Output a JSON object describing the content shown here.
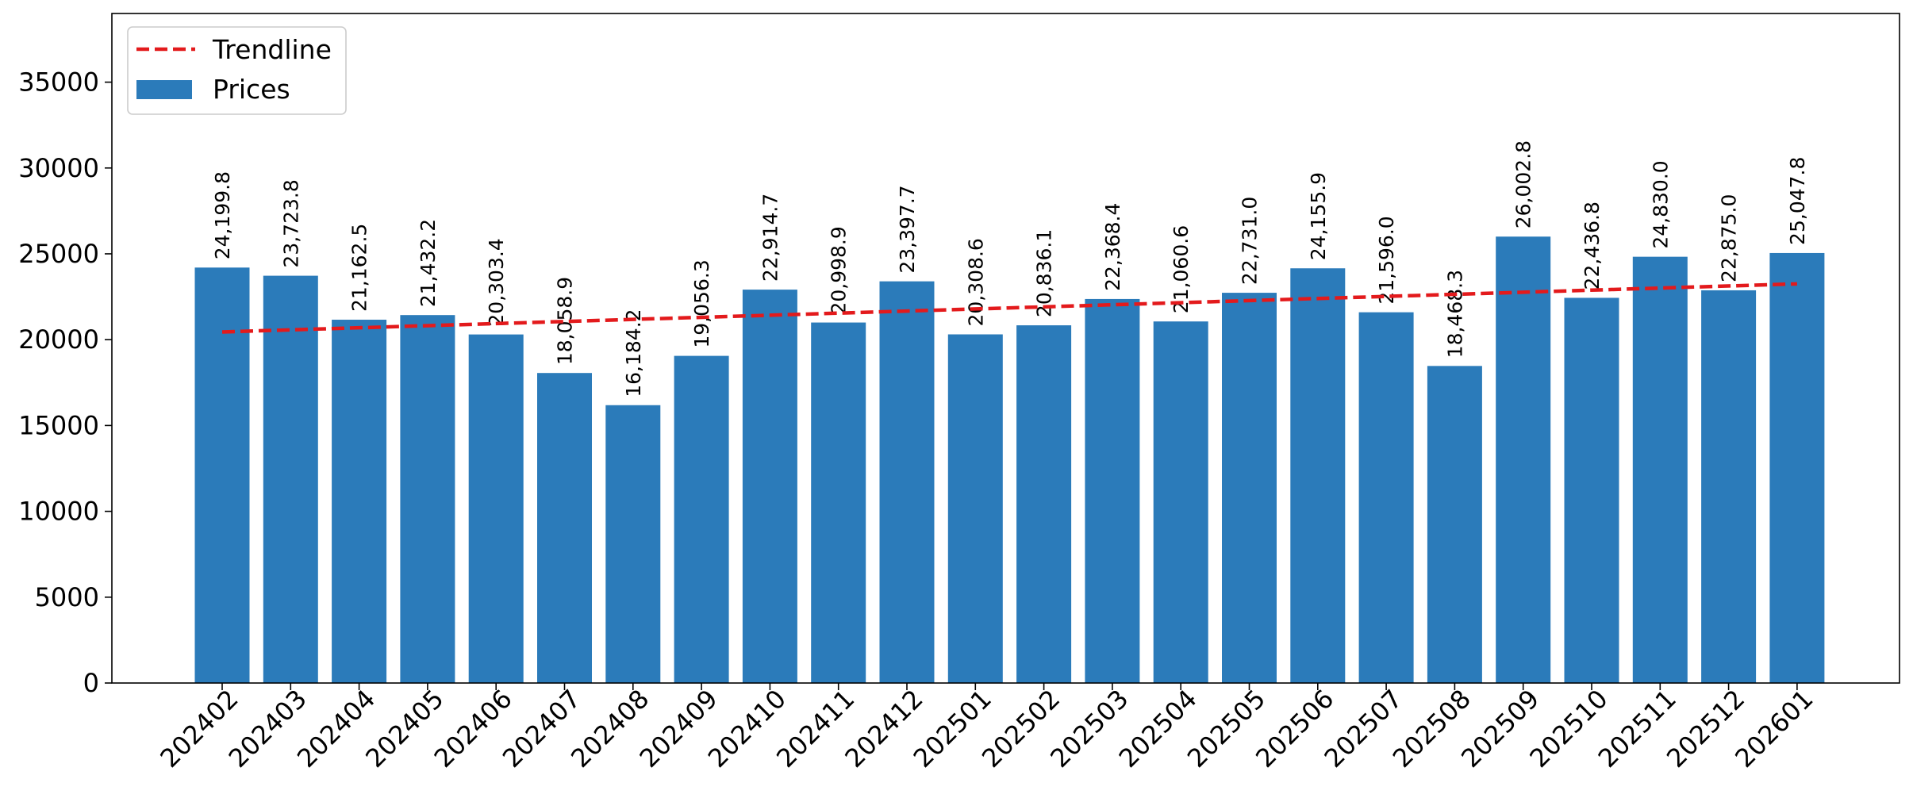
{
  "chart_data": {
    "type": "bar",
    "categories": [
      "202402",
      "202403",
      "202404",
      "202405",
      "202406",
      "202407",
      "202408",
      "202409",
      "202410",
      "202411",
      "202412",
      "202501",
      "202502",
      "202503",
      "202504",
      "202505",
      "202506",
      "202507",
      "202508",
      "202509",
      "202510",
      "202511",
      "202512",
      "202601"
    ],
    "series": [
      {
        "name": "Prices",
        "color": "#2b7bba",
        "values": [
          24199.8,
          23723.8,
          21162.5,
          21432.2,
          20303.4,
          18058.9,
          16184.2,
          19056.3,
          22914.7,
          20998.9,
          23397.7,
          20308.6,
          20836.1,
          22368.4,
          21060.6,
          22731.0,
          24155.9,
          21596.0,
          18468.3,
          26002.8,
          22436.8,
          24830.0,
          22875.0,
          25047.8
        ],
        "labels": [
          "24,199.8",
          "23,723.8",
          "21,162.5",
          "21,432.2",
          "20,303.4",
          "18,058.9",
          "16,184.2",
          "19,056.3",
          "22,914.7",
          "20,998.9",
          "23,397.7",
          "20,308.6",
          "20,836.1",
          "22,368.4",
          "21,060.6",
          "22,731.0",
          "24,155.9",
          "21,596.0",
          "18,468.3",
          "26,002.8",
          "22,436.8",
          "24,830.0",
          "22,875.0",
          "25,047.8"
        ]
      }
    ],
    "trendline": {
      "name": "Trendline",
      "color": "#e31a1c",
      "style": "dashed",
      "start": 20450,
      "end": 23250
    },
    "yticks": [
      0,
      5000,
      10000,
      15000,
      20000,
      25000,
      30000,
      35000
    ],
    "ylim": [
      0,
      39000
    ],
    "title": "",
    "xlabel": "",
    "ylabel": "",
    "legend": {
      "placement": "top-left",
      "entries": [
        "Trendline",
        "Prices"
      ]
    },
    "grid": false
  }
}
